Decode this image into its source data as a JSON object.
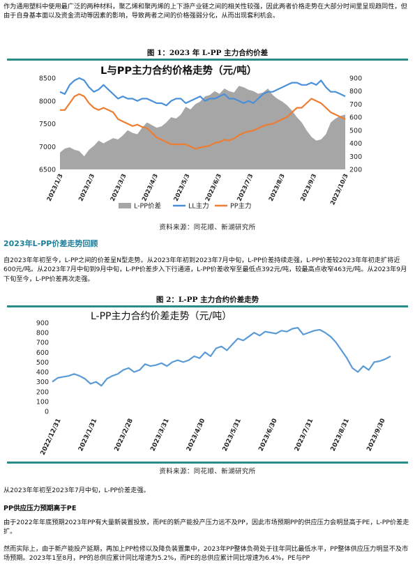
{
  "paragraphs": {
    "intro": "作为通用塑料中使用最广泛的两种材料，聚乙烯和聚丙烯的上下游产业链之间的相关性较强，因此两者价格走势在大部分时间里呈现趋同性，但由于自身基本面以及资金流动等因素的影响，导致两者之间的价格强弱分化，从而出现套利机会。",
    "review": "自2023年年初至今，L-PP之间的价差呈N型走势。从2023年年初到2023年7月中旬，L-PP价差持续走强，L-PP价差较2023年年初走扩将近600元/吨。从2023年7月中旬到9月中旬，L-PP价差步入下行通道，L-PP价差收窄至最低点392元/吨，较最高点收窄463元/吨。从2023年9月下旬至今，L-PP价差再次走强。",
    "after_fig2": "从2023年年初至2023年7月中旬，L-PP价差走强。",
    "supply1": "由于2022年年底预期2023年PP有大量新装置投放，而PE的新产能投产压力远不及PP，因此市场预期PP的供应压力会明显高于PE，L-PP价差走扩。",
    "supply2": "然而实际上，由于新产能投产延期，再加上PP检修以及降负装置集中，2023年PP整体负荷处于往年同比最低水平，PP整体供应压力明显不及市场预期。2023年1至8月，PP的总供应累计同比增速为5.2%，而PE的总供应累计同比增速为6.4%，PE与PP"
  },
  "headings": {
    "section": "2023年L-PP价差走势回顾",
    "sub": "PP供应压力预期高于PE"
  },
  "figures": {
    "fig1_title": "图 1：2023 年 L-PP 主力合约价差",
    "fig2_title": "图 2：L-PP 主力合约价差走势",
    "source": "资料来源：同花顺、新湖研究所"
  },
  "colors": {
    "teal_rule": "#2a8c86",
    "spread_area": "#a6a6a6",
    "ll_line": "#4a90d9",
    "pp_line": "#ed7d31",
    "fig2_line": "#5b9bd5",
    "heading": "#1b7f9a"
  },
  "chart_data": [
    {
      "type": "area",
      "title": "L与PP主力合约价格走势（元/吨）",
      "x_ticks": [
        "2023/1/3",
        "2023/2/3",
        "2023/3/3",
        "2023/4/3",
        "2023/5/3",
        "2023/6/3",
        "2023/7/3",
        "2023/8/3",
        "2023/9/3",
        "2023/10/3"
      ],
      "ylim_left": [
        6500,
        8500
      ],
      "yticks_left": [
        "6500",
        "7000",
        "7500",
        "8000",
        "8500"
      ],
      "ylim_right": [
        200,
        900
      ],
      "yticks_right": [
        "200",
        "300",
        "400",
        "500",
        "600",
        "700",
        "800",
        "900"
      ],
      "legend_position": "bottom",
      "grid": false,
      "series": [
        {
          "name": "L-PP价差",
          "axis": "right",
          "kind": "area",
          "values": [
            330,
            360,
            370,
            350,
            340,
            300,
            350,
            380,
            420,
            400,
            420,
            440,
            430,
            460,
            500,
            480,
            470,
            520,
            560,
            540,
            520,
            530,
            560,
            600,
            590,
            620,
            680,
            660,
            700,
            720,
            760,
            770,
            800,
            780,
            820,
            800,
            790,
            840,
            830,
            810,
            800,
            780,
            790,
            820,
            770,
            740,
            720,
            690,
            650,
            600,
            560,
            500,
            450,
            420,
            430,
            470,
            560,
            590,
            610,
            620
          ]
        },
        {
          "name": "LL主力",
          "axis": "left",
          "kind": "line",
          "values": [
            8200,
            8150,
            8350,
            8450,
            8500,
            8450,
            8300,
            8200,
            8250,
            8350,
            8250,
            8150,
            8050,
            8100,
            8050,
            8050,
            8000,
            8050,
            8050,
            8000,
            7950,
            7950,
            7900,
            8000,
            8050,
            8050,
            7950,
            8000,
            8050,
            8100,
            8000,
            8050,
            8050,
            8100,
            8150,
            8050,
            8050,
            8000,
            7950,
            8000,
            7950,
            8050,
            8150,
            8200,
            8200,
            8250,
            8300,
            8350,
            8400,
            8400,
            8350,
            8350,
            8400,
            8350,
            8450,
            8300,
            8200,
            8200,
            8150,
            8100
          ]
        },
        {
          "name": "PP主力",
          "axis": "left",
          "kind": "line",
          "values": [
            7800,
            7800,
            7950,
            8100,
            8150,
            8100,
            7950,
            7850,
            7800,
            7850,
            7800,
            7750,
            7600,
            7550,
            7500,
            7450,
            7480,
            7430,
            7400,
            7300,
            7200,
            7150,
            7100,
            7050,
            7050,
            7050,
            7050,
            7000,
            6950,
            6980,
            7000,
            7020,
            7080,
            7100,
            7150,
            7130,
            7180,
            7250,
            7300,
            7330,
            7350,
            7400,
            7450,
            7480,
            7500,
            7550,
            7600,
            7650,
            7750,
            7850,
            7850,
            7950,
            8050,
            8000,
            7950,
            7850,
            7750,
            7700,
            7650,
            7600
          ]
        }
      ]
    },
    {
      "type": "line",
      "title": "L-PP主力合约价差走势（元/吨）",
      "x_ticks": [
        "2022/12/31",
        "2023/1/31",
        "2023/2/28",
        "2023/3/31",
        "2023/4/30",
        "2023/5/31",
        "2023/6/30",
        "2023/7/31",
        "2023/8/31",
        "2023/9/30"
      ],
      "ylim": [
        0,
        900
      ],
      "yticks": [
        "0",
        "100",
        "200",
        "300",
        "400",
        "500",
        "600",
        "700",
        "800",
        "900"
      ],
      "grid": false,
      "series": [
        {
          "values": [
            300,
            340,
            350,
            360,
            380,
            360,
            330,
            280,
            300,
            260,
            330,
            360,
            380,
            420,
            440,
            400,
            420,
            480,
            460,
            470,
            490,
            460,
            500,
            520,
            500,
            520,
            560,
            540,
            600,
            560,
            640,
            660,
            620,
            680,
            740,
            720,
            760,
            800,
            770,
            810,
            800,
            790,
            820,
            810,
            840,
            850,
            780,
            800,
            820,
            830,
            800,
            760,
            700,
            620,
            540,
            440,
            400,
            460,
            420,
            500,
            510,
            530,
            560
          ]
        }
      ]
    }
  ]
}
